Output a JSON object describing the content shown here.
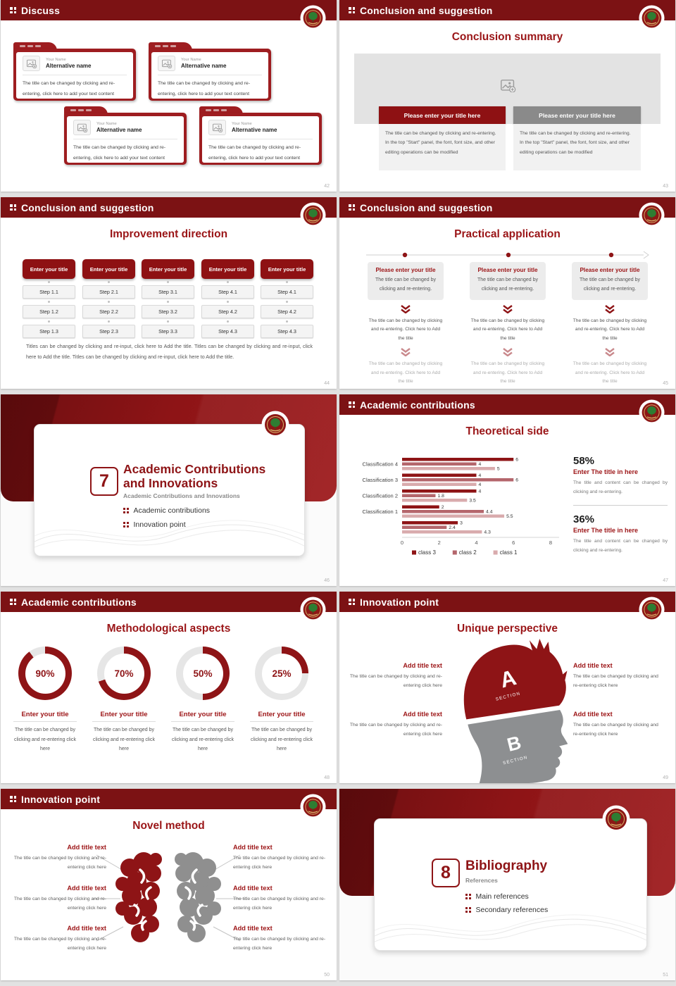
{
  "palette": {
    "band": "#7c1214",
    "accent": "#8e1416",
    "accent_mid": "#b4666c",
    "accent_light": "#d9abad",
    "folder": "#9e1d20",
    "gray_bar": "#8a8a8a",
    "track": "#e6e6e6"
  },
  "chart_data": {
    "type": "bar",
    "orientation": "horizontal",
    "title": "Theoretical side",
    "categories": [
      "Classification 4",
      "Classification 3",
      "Classification 2",
      "Classification 1",
      ""
    ],
    "series": [
      {
        "name": "class 3",
        "color": "#8e1416",
        "values": [
          6,
          4,
          4,
          2,
          3
        ]
      },
      {
        "name": "class 2",
        "color": "#b4666c",
        "values": [
          4,
          6,
          1.8,
          4.4,
          2.4
        ]
      },
      {
        "name": "class 1",
        "color": "#d9abad",
        "values": [
          5,
          4,
          3.5,
          5.5,
          4.3
        ]
      }
    ],
    "xlim": [
      0,
      8
    ],
    "xticks": [
      0,
      2,
      4,
      6,
      8
    ],
    "grid": false,
    "legend_position": "bottom",
    "data_labels": true
  },
  "slides": [
    {
      "header": "Discuss",
      "page": "42",
      "cards": [
        {
          "name_label": "Your Name",
          "title": "Alternative name",
          "body": "The title can be changed by clicking and re-entering, click here to add your text content"
        },
        {
          "name_label": "Your Name",
          "title": "Alternative name",
          "body": "The title can be changed by clicking and re-entering, click here to add your text content"
        },
        {
          "name_label": "Your Name",
          "title": "Alternative name",
          "body": "The title can be changed by clicking and re-entering, click here to add your text content"
        },
        {
          "name_label": "Your Name",
          "title": "Alternative name",
          "body": "The title can be changed by clicking and re-entering, click here to add your text content"
        }
      ]
    },
    {
      "header": "Conclusion and suggestion",
      "page": "43",
      "title": "Conclusion summary",
      "columns": [
        {
          "bar": "Please enter your title here",
          "body": "The title can be changed by clicking and re-entering. In the top \"Start\" panel, the font, font size, and other editing operations can be modified"
        },
        {
          "bar": "Please enter your title here",
          "body": "The title can be changed by clicking and re-entering. In the top \"Start\" panel, the font, font size, and other editing operations can be modified"
        }
      ]
    },
    {
      "header": "Conclusion and suggestion",
      "page": "44",
      "title": "Improvement direction",
      "columns": [
        {
          "title": "Enter your title",
          "steps": [
            "Step 1.1",
            "Step 1.2",
            "Step 1.3"
          ]
        },
        {
          "title": "Enter your title",
          "steps": [
            "Step 2.1",
            "Step 2.2",
            "Step 2.3"
          ]
        },
        {
          "title": "Enter your title",
          "steps": [
            "Step 3.1",
            "Step 3.2",
            "Step 3.3"
          ]
        },
        {
          "title": "Enter your title",
          "steps": [
            "Step 4.1",
            "Step 4.2",
            "Step 4.3"
          ]
        },
        {
          "title": "Enter your title",
          "steps": [
            "Step 4.1",
            "Step 4.2",
            "Step 4.3"
          ]
        }
      ],
      "footer": "Titles can be changed by clicking and re-input, click here to Add the title. Titles can be changed by clicking and re-input, click here to Add the title. Titles can be changed by clicking and re-input, click here to Add the title."
    },
    {
      "header": "Conclusion and suggestion",
      "page": "45",
      "title": "Practical application",
      "columns": [
        {
          "card_title": "Please enter your title",
          "card_body": "The title can be changed by clicking and re-entering.",
          "mid_text": "The title can be changed by clicking and re-entering. Click here to Add the title",
          "bottom_text": "The title can be changed by clicking and re-entering. Click here to Add the title"
        },
        {
          "card_title": "Please enter your title",
          "card_body": "The title can be changed by clicking and re-entering.",
          "mid_text": "The title can be changed by clicking and re-entering. Click here to Add the title",
          "bottom_text": "The title can be changed by clicking and re-entering. Click here to Add the title"
        },
        {
          "card_title": "Please enter your title",
          "card_body": "The title can be changed by clicking and re-entering.",
          "mid_text": "The title can be changed by clicking and re-entering. Click here to Add the title",
          "bottom_text": "The title can be changed by clicking and re-entering. Click here to Add the title"
        }
      ]
    },
    {
      "type": "section",
      "page": "46",
      "number": "7",
      "title_line1": "Academic Contributions",
      "title_line2": "and Innovations",
      "subtitle": "Academic Contributions and Innovations",
      "bullets": [
        "Academic contributions",
        "Innovation point"
      ]
    },
    {
      "header": "Academic contributions",
      "page": "47",
      "title": "Theoretical side",
      "stats": [
        {
          "value": "58%",
          "title": "Enter The title in here",
          "body": "The title and content can be changed by clicking and re-entering."
        },
        {
          "value": "36%",
          "title": "Enter The title in here",
          "body": "The title and content can be changed by clicking and re-entering."
        }
      ]
    },
    {
      "header": "Academic contributions",
      "page": "48",
      "title": "Methodological aspects",
      "items": [
        {
          "pct": 90,
          "label": "90%",
          "title": "Enter your title",
          "body": "The title can be changed by clicking and re-entering click here"
        },
        {
          "pct": 70,
          "label": "70%",
          "title": "Enter your title",
          "body": "The title can be changed by clicking and re-entering click here"
        },
        {
          "pct": 50,
          "label": "50%",
          "title": "Enter your title",
          "body": "The title can be changed by clicking and re-entering click here"
        },
        {
          "pct": 25,
          "label": "25%",
          "title": "Enter your title",
          "body": "The title can be changed by clicking and re-entering click here"
        }
      ]
    },
    {
      "header": "Innovation point",
      "page": "49",
      "title": "Unique perspective",
      "sections": [
        {
          "letter": "A",
          "label": "SECTION"
        },
        {
          "letter": "B",
          "label": "SECTION"
        }
      ],
      "items": [
        {
          "title": "Add title text",
          "body": "The title can be changed by clicking and re-entering click here"
        },
        {
          "title": "Add title text",
          "body": "The title can be changed by clicking and re-entering click here"
        },
        {
          "title": "Add title text",
          "body": "The title can be changed by clicking and re-entering click here"
        },
        {
          "title": "Add title text",
          "body": "The title can be changed by clicking and re-entering click here"
        }
      ]
    },
    {
      "header": "Innovation point",
      "page": "50",
      "title": "Novel method",
      "items": [
        {
          "title": "Add title text",
          "body": "The title can be changed by clicking and re-entering click here"
        },
        {
          "title": "Add title text",
          "body": "The title can be changed by clicking and re-entering click here"
        },
        {
          "title": "Add title text",
          "body": "The title can be changed by clicking and re-entering click here"
        },
        {
          "title": "Add title text",
          "body": "The title can be changed by clicking and re-entering click here"
        },
        {
          "title": "Add title text",
          "body": "The title can be changed by clicking and re-entering click here"
        },
        {
          "title": "Add title text",
          "body": "The title can be changed by clicking and re-entering click here"
        }
      ]
    },
    {
      "type": "section",
      "page": "51",
      "number": "8",
      "title_line1": "Bibliography",
      "title_line2": "",
      "subtitle": "References",
      "bullets": [
        "Main references",
        "Secondary references"
      ]
    }
  ]
}
